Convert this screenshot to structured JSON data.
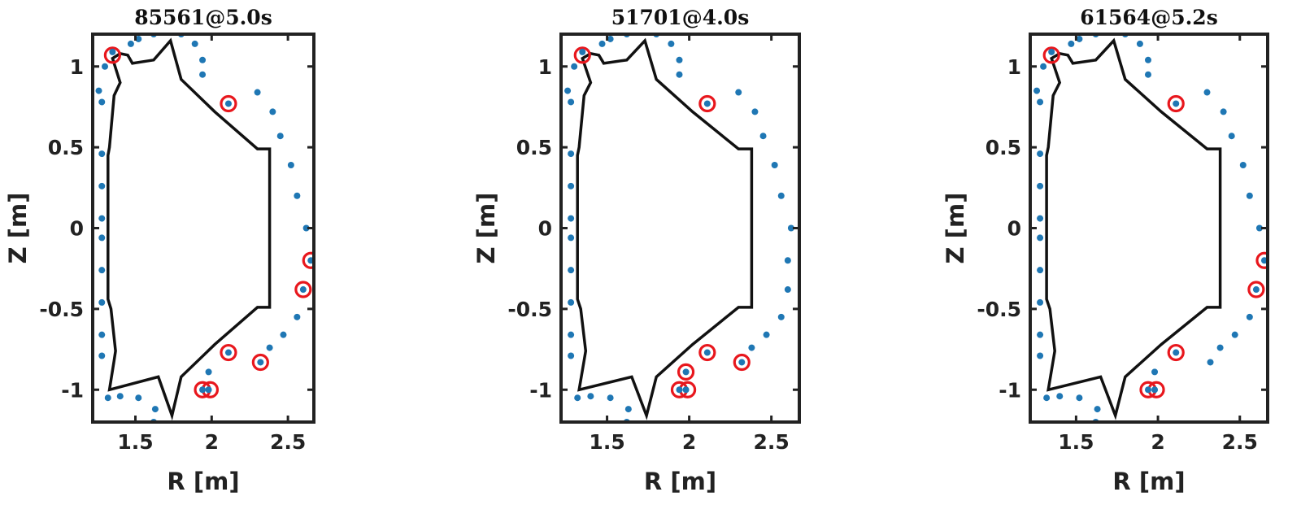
{
  "chart_data": [
    {
      "type": "scatter",
      "title": "85561@5.0s",
      "xlabel": "R [m]",
      "ylabel": "Z [m]",
      "xlim": [
        1.22,
        2.67
      ],
      "ylim": [
        -1.2,
        1.2
      ],
      "xticks": [
        {
          "v": 1.5,
          "label": "1.5"
        },
        {
          "v": 2,
          "label": "2"
        },
        {
          "v": 2.5,
          "label": "2.5"
        }
      ],
      "yticks": [
        {
          "v": 1,
          "label": "1"
        },
        {
          "v": 0.5,
          "label": "0.5"
        },
        {
          "v": 0,
          "label": "0"
        },
        {
          "v": -0.5,
          "label": "-0.5"
        },
        {
          "v": -1,
          "label": "-1"
        }
      ],
      "grid": false,
      "vessel": [
        [
          1.35,
          1.05
        ],
        [
          1.4,
          0.9
        ],
        [
          1.36,
          0.82
        ],
        [
          1.33,
          0.5
        ],
        [
          1.32,
          0.45
        ],
        [
          1.32,
          -0.44
        ],
        [
          1.34,
          -0.5
        ],
        [
          1.37,
          -0.76
        ],
        [
          1.36,
          -0.82
        ],
        [
          1.33,
          -1.0
        ],
        [
          1.65,
          -0.92
        ],
        [
          1.74,
          -1.16
        ],
        [
          1.8,
          -0.92
        ],
        [
          2.02,
          -0.72
        ],
        [
          2.3,
          -0.49
        ],
        [
          2.38,
          -0.49
        ],
        [
          2.38,
          0.49
        ],
        [
          2.3,
          0.49
        ],
        [
          2.02,
          0.72
        ],
        [
          1.8,
          0.92
        ],
        [
          1.73,
          1.16
        ],
        [
          1.62,
          1.04
        ],
        [
          1.48,
          1.02
        ],
        [
          1.45,
          1.07
        ],
        [
          1.4,
          1.08
        ],
        [
          1.35,
          1.05
        ]
      ],
      "probes": [
        [
          1.26,
          0.85
        ],
        [
          1.28,
          0.78
        ],
        [
          1.3,
          1.0
        ],
        [
          1.35,
          1.09
        ],
        [
          1.28,
          0.46
        ],
        [
          1.28,
          0.26
        ],
        [
          1.28,
          0.06
        ],
        [
          1.28,
          -0.06
        ],
        [
          1.28,
          -0.26
        ],
        [
          1.28,
          -0.46
        ],
        [
          1.28,
          -0.66
        ],
        [
          1.28,
          -0.79
        ],
        [
          1.32,
          -1.05
        ],
        [
          1.4,
          -1.04
        ],
        [
          1.52,
          -1.05
        ],
        [
          1.63,
          -1.12
        ],
        [
          1.62,
          -1.2
        ],
        [
          1.47,
          1.14
        ],
        [
          1.52,
          1.17
        ],
        [
          1.62,
          1.2
        ],
        [
          1.8,
          1.2
        ],
        [
          1.89,
          1.14
        ],
        [
          1.94,
          1.04
        ],
        [
          1.94,
          0.95
        ],
        [
          2.11,
          0.77
        ],
        [
          2.3,
          0.84
        ],
        [
          2.4,
          0.72
        ],
        [
          2.45,
          0.57
        ],
        [
          2.52,
          0.39
        ],
        [
          2.56,
          0.2
        ],
        [
          2.62,
          0.0
        ],
        [
          2.65,
          -0.2
        ],
        [
          2.6,
          -0.38
        ],
        [
          2.56,
          -0.55
        ],
        [
          2.47,
          -0.66
        ],
        [
          2.38,
          -0.74
        ],
        [
          2.32,
          -0.83
        ],
        [
          2.11,
          -0.77
        ],
        [
          1.98,
          -0.89
        ],
        [
          1.94,
          -1.0
        ],
        [
          1.98,
          -1.0
        ]
      ],
      "highlighted": [
        [
          1.35,
          1.07
        ],
        [
          2.11,
          0.77
        ],
        [
          2.65,
          -0.2
        ],
        [
          2.6,
          -0.38
        ],
        [
          2.11,
          -0.77
        ],
        [
          2.32,
          -0.83
        ],
        [
          1.94,
          -1.0
        ],
        [
          1.99,
          -1.0
        ]
      ],
      "colors": {
        "vessel": "#111111",
        "probe": "#1f77b4",
        "highlight": "#e8171d"
      }
    },
    {
      "type": "scatter",
      "title": "51701@4.0s",
      "xlabel": "R [m]",
      "ylabel": "Z [m]",
      "xlim": [
        1.22,
        2.67
      ],
      "ylim": [
        -1.2,
        1.2
      ],
      "xticks": [
        {
          "v": 1.5,
          "label": "1.5"
        },
        {
          "v": 2,
          "label": "2"
        },
        {
          "v": 2.5,
          "label": "2.5"
        }
      ],
      "yticks": [
        {
          "v": 1,
          "label": "1"
        },
        {
          "v": 0.5,
          "label": "0.5"
        },
        {
          "v": 0,
          "label": "0"
        },
        {
          "v": -0.5,
          "label": "-0.5"
        },
        {
          "v": -1,
          "label": "-1"
        }
      ],
      "grid": false,
      "vessel": [
        [
          1.35,
          1.05
        ],
        [
          1.4,
          0.9
        ],
        [
          1.36,
          0.82
        ],
        [
          1.33,
          0.5
        ],
        [
          1.32,
          0.45
        ],
        [
          1.32,
          -0.44
        ],
        [
          1.34,
          -0.5
        ],
        [
          1.37,
          -0.76
        ],
        [
          1.36,
          -0.82
        ],
        [
          1.33,
          -1.0
        ],
        [
          1.65,
          -0.92
        ],
        [
          1.74,
          -1.16
        ],
        [
          1.8,
          -0.92
        ],
        [
          2.02,
          -0.72
        ],
        [
          2.3,
          -0.49
        ],
        [
          2.38,
          -0.49
        ],
        [
          2.38,
          0.49
        ],
        [
          2.3,
          0.49
        ],
        [
          2.02,
          0.72
        ],
        [
          1.8,
          0.92
        ],
        [
          1.73,
          1.16
        ],
        [
          1.62,
          1.04
        ],
        [
          1.48,
          1.02
        ],
        [
          1.45,
          1.07
        ],
        [
          1.4,
          1.08
        ],
        [
          1.35,
          1.05
        ]
      ],
      "probes": [
        [
          1.26,
          0.85
        ],
        [
          1.28,
          0.78
        ],
        [
          1.3,
          1.0
        ],
        [
          1.35,
          1.09
        ],
        [
          1.28,
          0.46
        ],
        [
          1.28,
          0.26
        ],
        [
          1.28,
          0.06
        ],
        [
          1.28,
          -0.06
        ],
        [
          1.28,
          -0.26
        ],
        [
          1.28,
          -0.46
        ],
        [
          1.28,
          -0.66
        ],
        [
          1.28,
          -0.79
        ],
        [
          1.32,
          -1.05
        ],
        [
          1.4,
          -1.04
        ],
        [
          1.52,
          -1.05
        ],
        [
          1.63,
          -1.12
        ],
        [
          1.62,
          -1.2
        ],
        [
          1.47,
          1.14
        ],
        [
          1.52,
          1.17
        ],
        [
          1.62,
          1.2
        ],
        [
          1.8,
          1.2
        ],
        [
          1.89,
          1.14
        ],
        [
          1.94,
          1.04
        ],
        [
          1.94,
          0.95
        ],
        [
          2.11,
          0.77
        ],
        [
          2.3,
          0.84
        ],
        [
          2.4,
          0.72
        ],
        [
          2.45,
          0.57
        ],
        [
          2.52,
          0.39
        ],
        [
          2.56,
          0.2
        ],
        [
          2.62,
          0.0
        ],
        [
          2.6,
          -0.2
        ],
        [
          2.6,
          -0.38
        ],
        [
          2.56,
          -0.55
        ],
        [
          2.47,
          -0.66
        ],
        [
          2.38,
          -0.74
        ],
        [
          2.32,
          -0.83
        ],
        [
          2.11,
          -0.77
        ],
        [
          1.98,
          -0.89
        ],
        [
          1.94,
          -1.0
        ],
        [
          1.98,
          -1.0
        ]
      ],
      "highlighted": [
        [
          1.35,
          1.07
        ],
        [
          2.11,
          0.77
        ],
        [
          2.11,
          -0.77
        ],
        [
          2.32,
          -0.83
        ],
        [
          1.98,
          -0.89
        ],
        [
          1.94,
          -1.0
        ],
        [
          1.99,
          -1.0
        ]
      ],
      "colors": {
        "vessel": "#111111",
        "probe": "#1f77b4",
        "highlight": "#e8171d"
      }
    },
    {
      "type": "scatter",
      "title": "61564@5.2s",
      "xlabel": "R [m]",
      "ylabel": "Z [m]",
      "xlim": [
        1.22,
        2.67
      ],
      "ylim": [
        -1.2,
        1.2
      ],
      "xticks": [
        {
          "v": 1.5,
          "label": "1.5"
        },
        {
          "v": 2,
          "label": "2"
        },
        {
          "v": 2.5,
          "label": "2.5"
        }
      ],
      "yticks": [
        {
          "v": 1,
          "label": "1"
        },
        {
          "v": 0.5,
          "label": "0.5"
        },
        {
          "v": 0,
          "label": "0"
        },
        {
          "v": -0.5,
          "label": "-0.5"
        },
        {
          "v": -1,
          "label": "-1"
        }
      ],
      "grid": false,
      "vessel": [
        [
          1.35,
          1.05
        ],
        [
          1.4,
          0.9
        ],
        [
          1.36,
          0.82
        ],
        [
          1.33,
          0.5
        ],
        [
          1.32,
          0.45
        ],
        [
          1.32,
          -0.44
        ],
        [
          1.34,
          -0.5
        ],
        [
          1.37,
          -0.76
        ],
        [
          1.36,
          -0.82
        ],
        [
          1.33,
          -1.0
        ],
        [
          1.65,
          -0.92
        ],
        [
          1.74,
          -1.16
        ],
        [
          1.8,
          -0.92
        ],
        [
          2.02,
          -0.72
        ],
        [
          2.3,
          -0.49
        ],
        [
          2.38,
          -0.49
        ],
        [
          2.38,
          0.49
        ],
        [
          2.3,
          0.49
        ],
        [
          2.02,
          0.72
        ],
        [
          1.8,
          0.92
        ],
        [
          1.73,
          1.16
        ],
        [
          1.62,
          1.04
        ],
        [
          1.48,
          1.02
        ],
        [
          1.45,
          1.07
        ],
        [
          1.4,
          1.08
        ],
        [
          1.35,
          1.05
        ]
      ],
      "probes": [
        [
          1.26,
          0.85
        ],
        [
          1.28,
          0.78
        ],
        [
          1.3,
          1.0
        ],
        [
          1.35,
          1.09
        ],
        [
          1.28,
          0.46
        ],
        [
          1.28,
          0.26
        ],
        [
          1.28,
          0.06
        ],
        [
          1.28,
          -0.06
        ],
        [
          1.28,
          -0.26
        ],
        [
          1.28,
          -0.46
        ],
        [
          1.28,
          -0.66
        ],
        [
          1.28,
          -0.79
        ],
        [
          1.32,
          -1.05
        ],
        [
          1.4,
          -1.04
        ],
        [
          1.52,
          -1.05
        ],
        [
          1.63,
          -1.12
        ],
        [
          1.62,
          -1.2
        ],
        [
          1.47,
          1.14
        ],
        [
          1.52,
          1.17
        ],
        [
          1.62,
          1.2
        ],
        [
          1.8,
          1.2
        ],
        [
          1.89,
          1.14
        ],
        [
          1.94,
          1.04
        ],
        [
          1.94,
          0.95
        ],
        [
          2.11,
          0.77
        ],
        [
          2.3,
          0.84
        ],
        [
          2.4,
          0.72
        ],
        [
          2.45,
          0.57
        ],
        [
          2.52,
          0.39
        ],
        [
          2.56,
          0.2
        ],
        [
          2.62,
          0.0
        ],
        [
          2.65,
          -0.2
        ],
        [
          2.6,
          -0.38
        ],
        [
          2.56,
          -0.55
        ],
        [
          2.47,
          -0.66
        ],
        [
          2.38,
          -0.74
        ],
        [
          2.32,
          -0.83
        ],
        [
          2.11,
          -0.77
        ],
        [
          1.98,
          -0.89
        ],
        [
          1.94,
          -1.0
        ],
        [
          1.98,
          -1.0
        ]
      ],
      "highlighted": [
        [
          1.35,
          1.07
        ],
        [
          2.11,
          0.77
        ],
        [
          2.65,
          -0.2
        ],
        [
          2.6,
          -0.38
        ],
        [
          2.11,
          -0.77
        ],
        [
          1.94,
          -1.0
        ],
        [
          1.99,
          -1.0
        ]
      ],
      "colors": {
        "vessel": "#111111",
        "probe": "#1f77b4",
        "highlight": "#e8171d"
      }
    }
  ]
}
